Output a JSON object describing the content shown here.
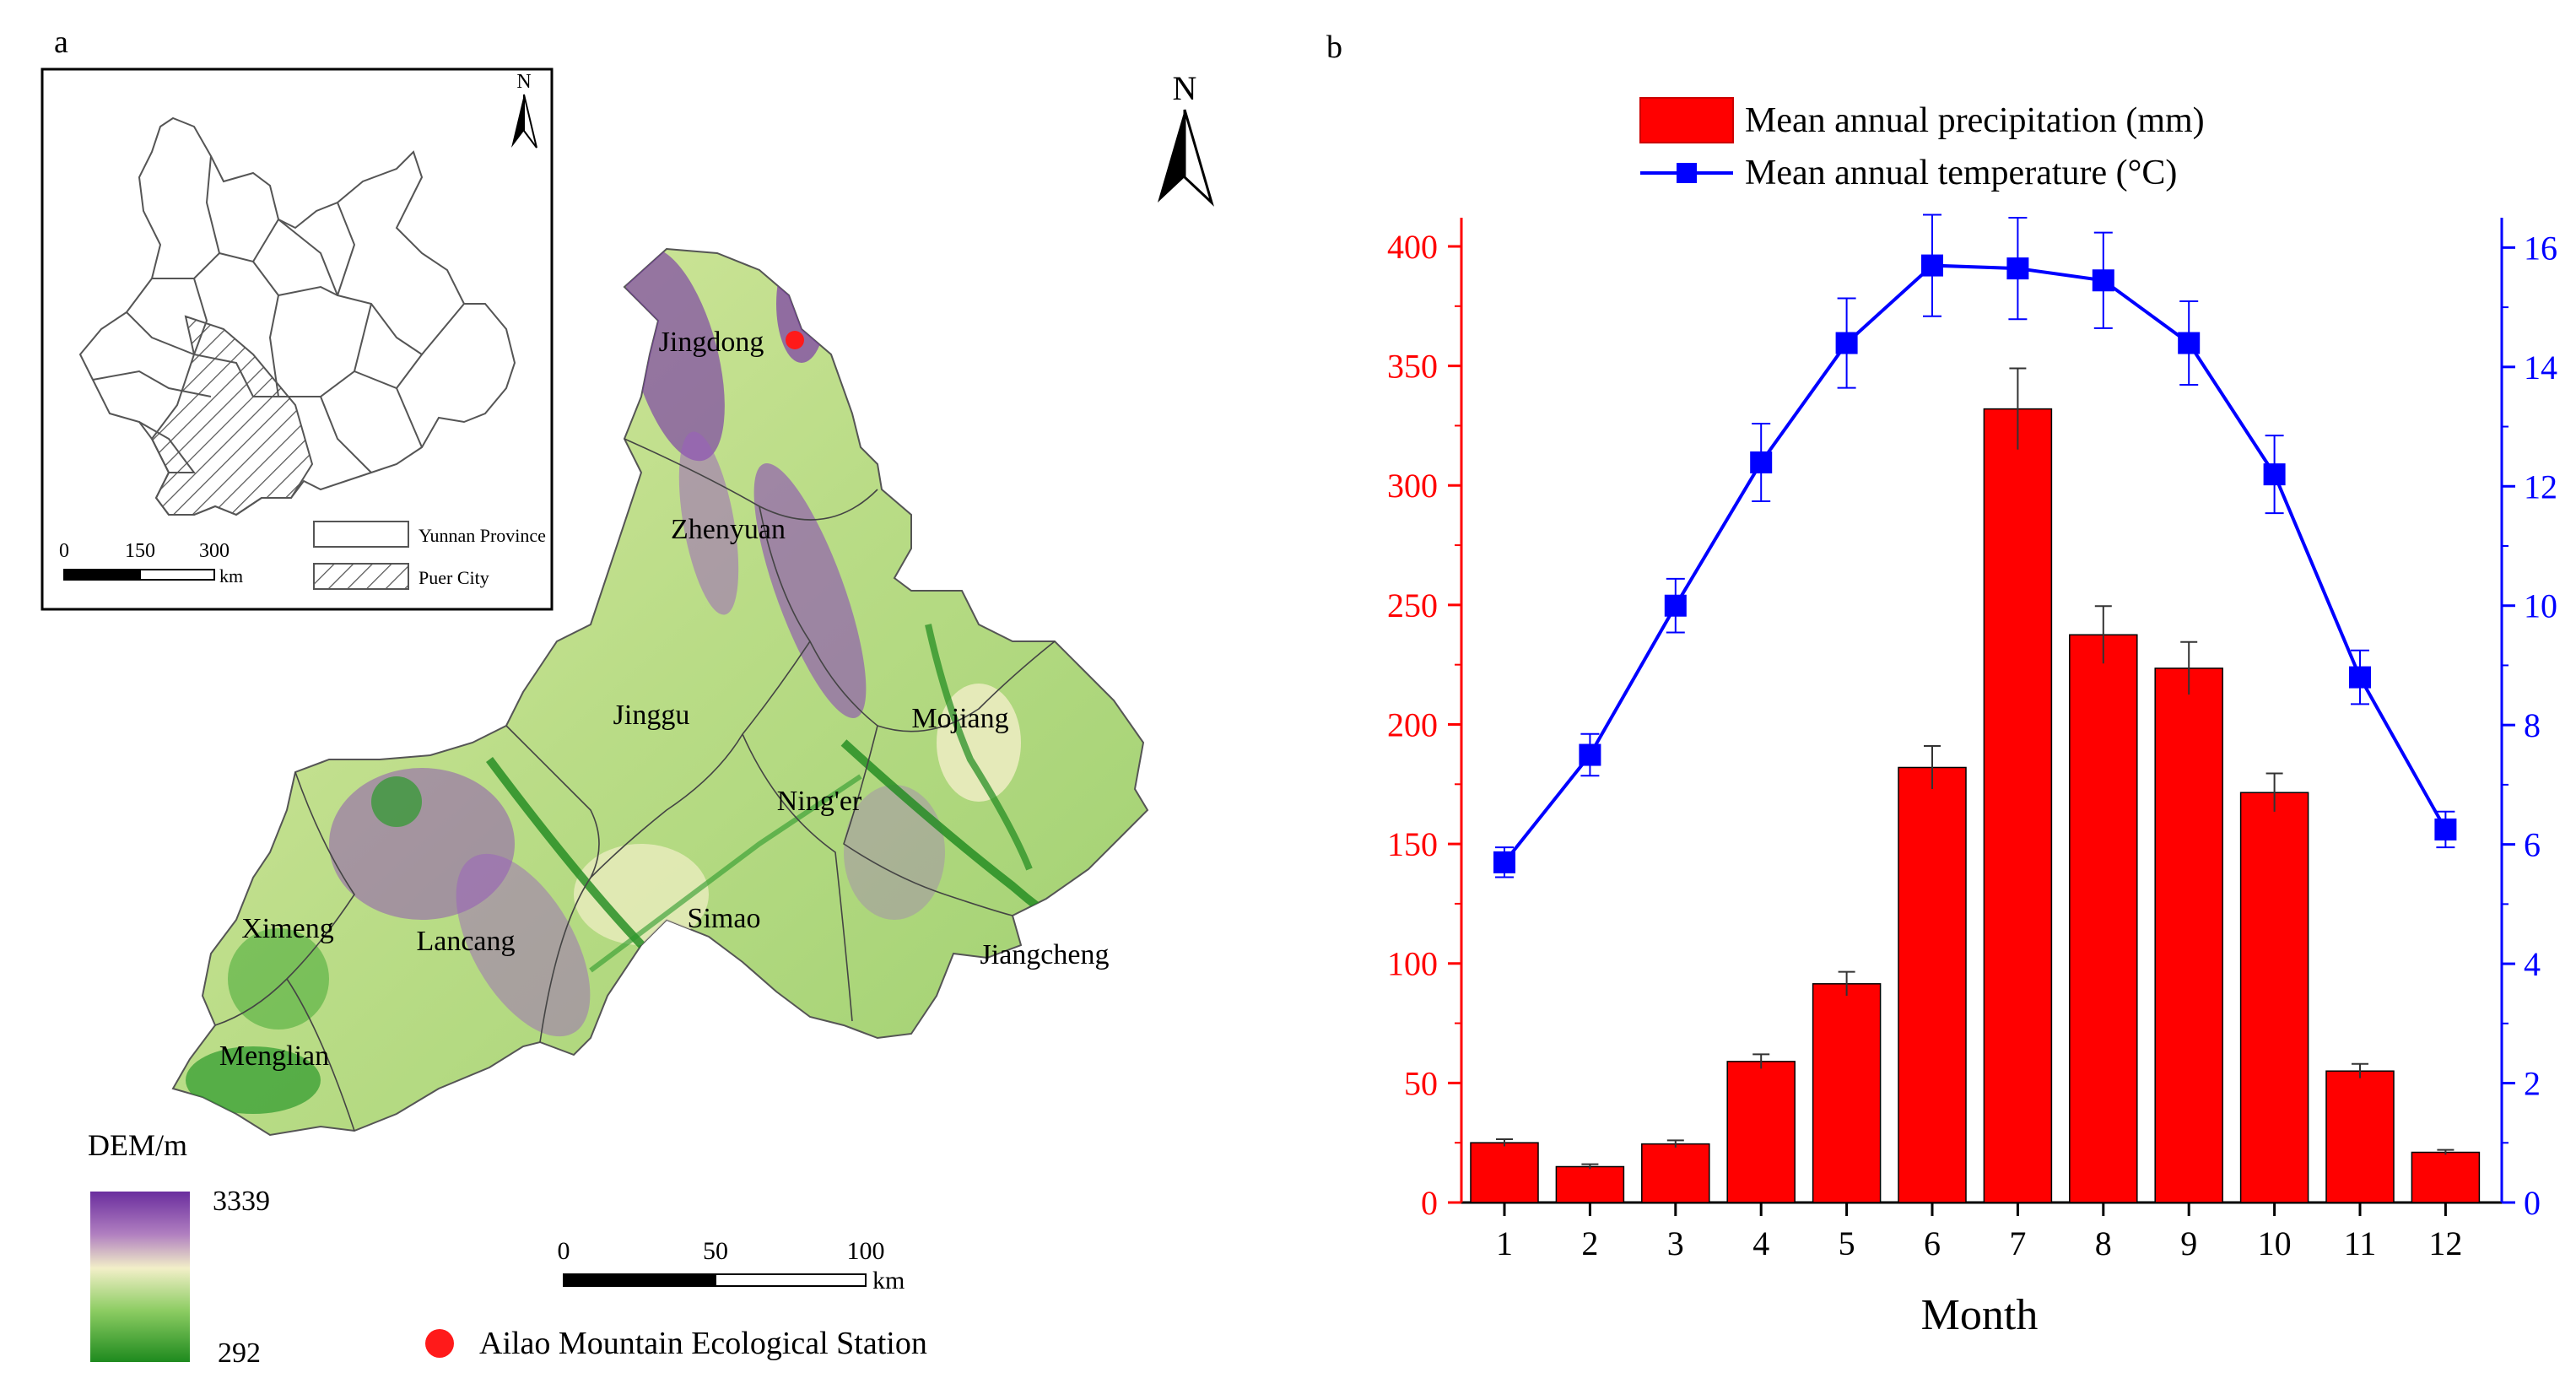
{
  "panel_a": {
    "letter": "a",
    "north_label": "N",
    "inset": {
      "north_label": "N",
      "scale_ticks": [
        "0",
        "150",
        "300"
      ],
      "scale_unit": "km",
      "legend": [
        {
          "label": "Yunnan Province",
          "pattern": "empty"
        },
        {
          "label": "Puer City",
          "pattern": "hatch"
        }
      ]
    },
    "county_labels": [
      "Jingdong",
      "Zhenyuan",
      "Jinggu",
      "Mojiang",
      "Ning'er",
      "Simao",
      "Lancang",
      "Ximeng",
      "Jiangcheng",
      "Menglian"
    ],
    "dem_legend": {
      "title": "DEM/m",
      "max": "3339",
      "min": "292",
      "colors": {
        "high": "#6a2d9e",
        "mid": "#f2efc8",
        "low": "#1e8a1e"
      }
    },
    "scalebar": {
      "ticks": [
        "0",
        "50",
        "100"
      ],
      "unit": "km"
    },
    "station_legend": {
      "label": "Ailao Mountain Ecological Station",
      "color": "#ff1a1a"
    }
  },
  "panel_b": {
    "letter": "b",
    "legend": [
      {
        "label": "Mean annual precipitation (mm)",
        "kind": "bar",
        "color": "#ff0000"
      },
      {
        "label": "Mean annual temperature (°C)",
        "kind": "line",
        "color": "#0000ff"
      }
    ],
    "xlabel": "Month"
  },
  "chart_data": {
    "type": "bar",
    "categories": [
      "1",
      "2",
      "3",
      "4",
      "5",
      "6",
      "7",
      "8",
      "9",
      "10",
      "11",
      "12"
    ],
    "xlabel": "Month",
    "series": [
      {
        "name": "Mean annual precipitation (mm)",
        "type": "bar",
        "axis": "left",
        "color": "#ff0000",
        "values": [
          25,
          15,
          24.5,
          59,
          91.5,
          182,
          332,
          237.5,
          223.5,
          171.5,
          55,
          21
        ],
        "errors": [
          1.5,
          1,
          1.5,
          3,
          5,
          9,
          17,
          12,
          11,
          8,
          3,
          1
        ]
      },
      {
        "name": "Mean annual temperature (°C)",
        "type": "line",
        "axis": "right",
        "color": "#0000ff",
        "values": [
          5.7,
          7.5,
          10.0,
          12.4,
          14.4,
          15.7,
          15.65,
          15.45,
          14.4,
          12.2,
          8.8,
          6.25
        ],
        "errors": [
          0.25,
          0.35,
          0.45,
          0.65,
          0.75,
          0.85,
          0.85,
          0.8,
          0.7,
          0.65,
          0.45,
          0.3
        ]
      }
    ],
    "y_left": {
      "min": 0,
      "max": 400,
      "ticks": [
        "0",
        "50",
        "100",
        "150",
        "200",
        "250",
        "300",
        "350",
        "400"
      ],
      "color": "#ff0000"
    },
    "y_right": {
      "min": 0,
      "max": 16,
      "ticks": [
        "0",
        "2",
        "4",
        "6",
        "8",
        "10",
        "12",
        "14",
        "16"
      ],
      "color": "#0000ff"
    },
    "ylim_left": [
      0,
      412
    ],
    "ylim_right": [
      0,
      16.5
    ],
    "grid": false,
    "legend_position": "top"
  }
}
